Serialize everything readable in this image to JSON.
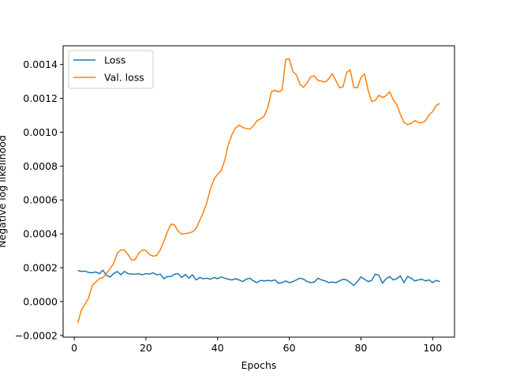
{
  "chart_data": {
    "type": "line",
    "title": "",
    "xlabel": "Epochs",
    "ylabel": "Negative log likelihood",
    "xlim": [
      -3.1,
      106.1
    ],
    "ylim": [
      -0.00021,
      0.00151
    ],
    "xticks": [
      0,
      20,
      40,
      60,
      80,
      100
    ],
    "xtick_labels": [
      "0",
      "20",
      "40",
      "60",
      "80",
      "100"
    ],
    "yticks": [
      -0.0002,
      0.0,
      0.0002,
      0.0004,
      0.0006,
      0.0008,
      0.001,
      0.0012,
      0.0014
    ],
    "ytick_labels": [
      "−0.0002",
      "0.0000",
      "0.0002",
      "0.0004",
      "0.0006",
      "0.0008",
      "0.0010",
      "0.0012",
      "0.0014"
    ],
    "grid": false,
    "legend_position": "top-left",
    "x": [
      1,
      2,
      3,
      4,
      5,
      6,
      7,
      8,
      9,
      10,
      11,
      12,
      13,
      14,
      15,
      16,
      17,
      18,
      19,
      20,
      21,
      22,
      23,
      24,
      25,
      26,
      27,
      28,
      29,
      30,
      31,
      32,
      33,
      34,
      35,
      36,
      37,
      38,
      39,
      40,
      41,
      42,
      43,
      44,
      45,
      46,
      47,
      48,
      49,
      50,
      51,
      52,
      53,
      54,
      55,
      56,
      57,
      58,
      59,
      60,
      61,
      62,
      63,
      64,
      65,
      66,
      67,
      68,
      69,
      70,
      71,
      72,
      73,
      74,
      75,
      76,
      77,
      78,
      79,
      80,
      81,
      82,
      83,
      84,
      85,
      86,
      87,
      88,
      89,
      90,
      91,
      92,
      93,
      94,
      95,
      96,
      97,
      98,
      99,
      100,
      101,
      102
    ],
    "series": [
      {
        "name": "Loss",
        "color": "#1f77b4",
        "values": [
          0.000183,
          0.000178,
          0.00018,
          0.000172,
          0.00017,
          0.000175,
          0.000165,
          0.000185,
          0.000155,
          0.000145,
          0.000165,
          0.000178,
          0.000158,
          0.000178,
          0.000165,
          0.000162,
          0.000162,
          0.000165,
          0.000158,
          0.000165,
          0.000162,
          0.00017,
          0.000158,
          0.000162,
          0.000135,
          0.000148,
          0.000148,
          0.000162,
          0.000165,
          0.000142,
          0.00016,
          0.000138,
          0.000158,
          0.000128,
          0.000142,
          0.000135,
          0.000138,
          0.000132,
          0.000142,
          0.000135,
          0.000145,
          0.000138,
          0.000132,
          0.000128,
          0.000135,
          0.000128,
          0.000118,
          0.000132,
          0.000138,
          0.000122,
          0.000112,
          0.000125,
          0.000122,
          0.000125,
          0.000122,
          0.000128,
          0.000108,
          0.000112,
          0.000122,
          0.000112,
          0.000118,
          0.000128,
          0.000138,
          0.000132,
          0.000118,
          0.000112,
          0.000115,
          0.000138,
          0.000128,
          0.000122,
          0.000112,
          0.000115,
          0.000112,
          0.000122,
          0.000132,
          0.000128,
          0.000112,
          9.5e-05,
          0.000118,
          0.000145,
          0.000132,
          0.000118,
          0.000125,
          0.000162,
          0.000155,
          0.000108,
          0.000135,
          0.000148,
          0.000128,
          0.000135,
          0.000152,
          0.000112,
          0.000148,
          0.000138,
          0.000122,
          0.000128,
          0.000132,
          0.000122,
          0.000128,
          0.000112,
          0.000125,
          0.000118
        ]
      },
      {
        "name": "Val. loss",
        "color": "#ff7f0e",
        "values": [
          -0.000125,
          -5e-05,
          -1.5e-05,
          2e-05,
          9.5e-05,
          0.000115,
          0.000135,
          0.000142,
          0.000165,
          0.000195,
          0.000225,
          0.000285,
          0.000305,
          0.000305,
          0.000278,
          0.000245,
          0.000248,
          0.000285,
          0.000305,
          0.000302,
          0.000278,
          0.000268,
          0.000272,
          0.000305,
          0.000355,
          0.000412,
          0.000458,
          0.000452,
          0.000415,
          0.000398,
          0.000402,
          0.000405,
          0.000412,
          0.000432,
          0.000478,
          0.000525,
          0.000585,
          0.000665,
          0.000722,
          0.000752,
          0.000772,
          0.000835,
          0.000928,
          0.000985,
          0.001025,
          0.001042,
          0.001028,
          0.001022,
          0.001018,
          0.001038,
          0.001068,
          0.001078,
          0.001095,
          0.001145,
          0.001238,
          0.001248,
          0.001238,
          0.001248,
          0.00143,
          0.001432,
          0.001358,
          0.001338,
          0.001282,
          0.001265,
          0.001292,
          0.001328,
          0.001332,
          0.001305,
          0.001302,
          0.001295,
          0.001315,
          0.001345,
          0.001305,
          0.001262,
          0.001268,
          0.001352,
          0.001368,
          0.001265,
          0.001262,
          0.001322,
          0.001345,
          0.001248,
          0.001182,
          0.001188,
          0.001218,
          0.001205,
          0.001215,
          0.001238,
          0.001192,
          0.001162,
          0.001105,
          0.001058,
          0.001045,
          0.001052,
          0.001068,
          0.001058,
          0.001055,
          0.001068,
          0.001102,
          0.001122,
          0.001158,
          0.00117
        ]
      }
    ]
  }
}
